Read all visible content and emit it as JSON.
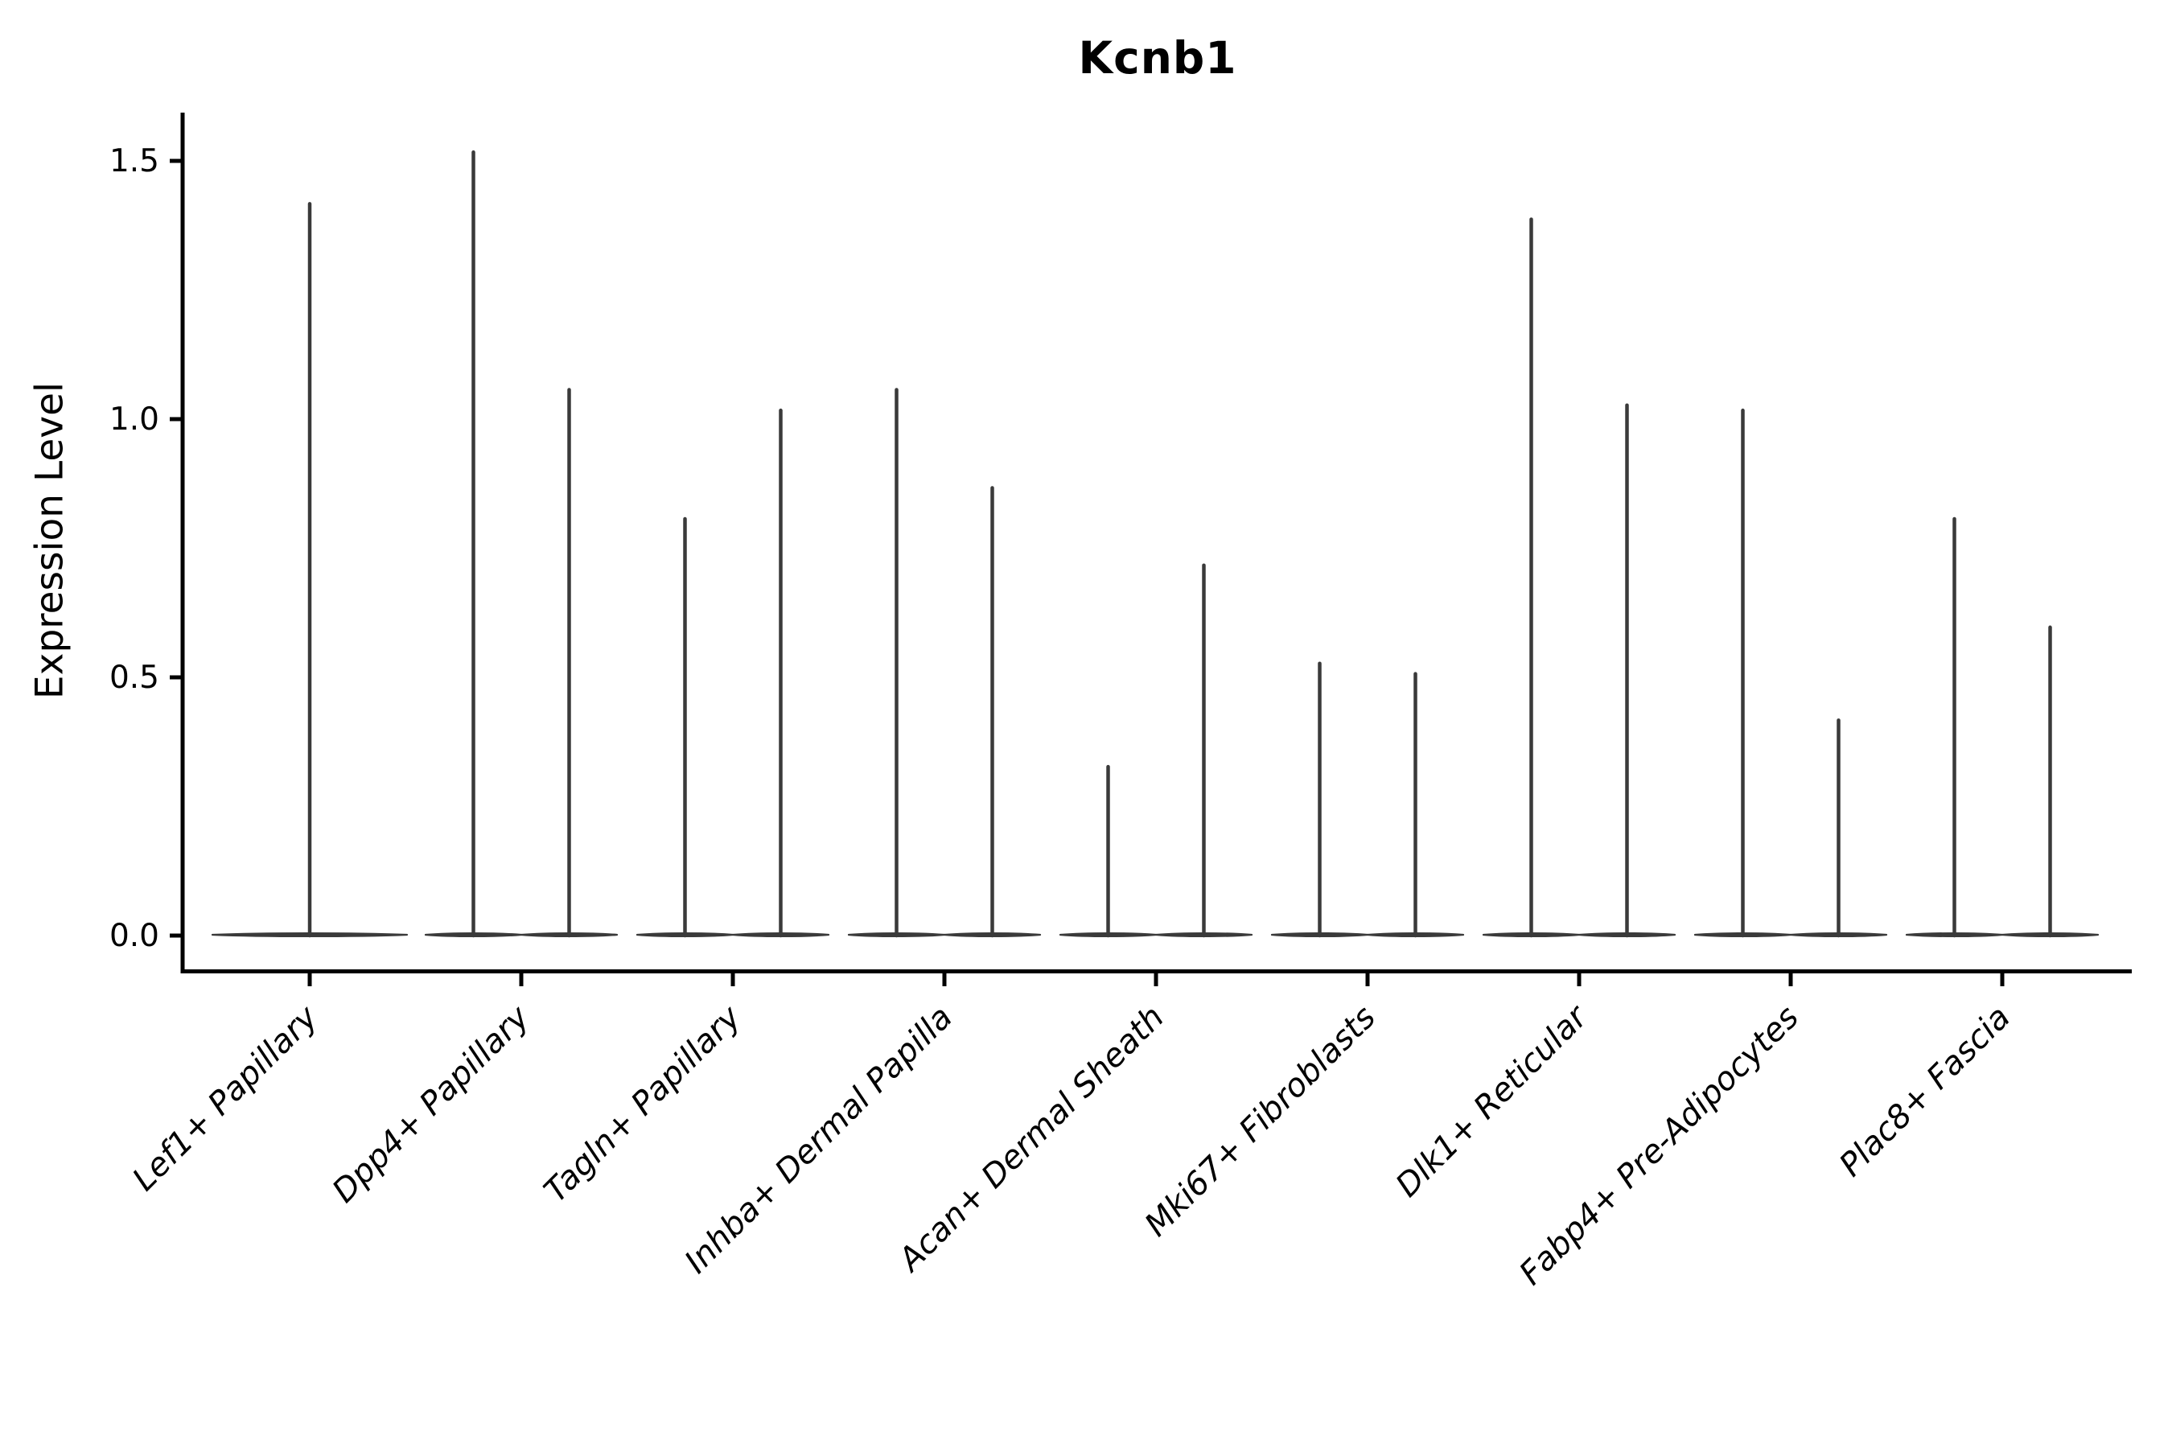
{
  "title": "Kcnb1",
  "axes": {
    "y_label": "Expression Level",
    "y_tick_labels": [
      "0.0",
      "0.5",
      "1.0",
      "1.5"
    ]
  },
  "chart_data": {
    "type": "violin",
    "title": "Kcnb1",
    "xlabel": "",
    "ylabel": "Expression Level",
    "ytick_values": [
      0.0,
      0.5,
      1.0,
      1.5
    ],
    "ytick_labels": [
      "0.0",
      "0.5",
      "1.0",
      "1.5"
    ],
    "ylim": [
      -0.07,
      1.6
    ],
    "grid": false,
    "legend": "none",
    "x_tick_label_rotation": 45,
    "x_tick_label_style": "italic",
    "violin_min": 0,
    "shape_note": "Each violin is collapsed at 0 (flat wide base at y=0) with a thin vertical tail up to its maximum; groups 2-9 contain two side-by-side violins, group 1 contains one full-width violin",
    "categories": [
      "Lef1+ Papillary",
      "Dpp4+ Papillary",
      "Tagln+ Papillary",
      "Inhba+ Dermal Papilla",
      "Acan+ Dermal Sheath",
      "Mki67+ Fibroblasts",
      "Dlk1+ Reticular",
      "Fabp4+ Pre-Adipocytes",
      "Plac8+ Fascia"
    ],
    "groups": [
      {
        "label": "Lef1+ Papillary",
        "violin_max": [
          1.42
        ]
      },
      {
        "label": "Dpp4+ Papillary",
        "violin_max": [
          1.52,
          1.06
        ]
      },
      {
        "label": "Tagln+ Papillary",
        "violin_max": [
          0.81,
          1.02
        ]
      },
      {
        "label": "Inhba+ Dermal Papilla",
        "violin_max": [
          1.06,
          0.87
        ]
      },
      {
        "label": "Acan+ Dermal Sheath",
        "violin_max": [
          0.33,
          0.72
        ]
      },
      {
        "label": "Mki67+ Fibroblasts",
        "violin_max": [
          0.53,
          0.51
        ]
      },
      {
        "label": "Dlk1+ Reticular",
        "violin_max": [
          1.39,
          1.03
        ]
      },
      {
        "label": "Fabp4+ Pre-Adipocytes",
        "violin_max": [
          1.02,
          0.42
        ]
      },
      {
        "label": "Plac8+ Fascia",
        "violin_max": [
          0.81,
          0.6
        ]
      }
    ],
    "colors": {
      "violin_stroke": "#3a3a3a",
      "axis": "#000000",
      "text": "#000000",
      "background": "#ffffff"
    }
  }
}
